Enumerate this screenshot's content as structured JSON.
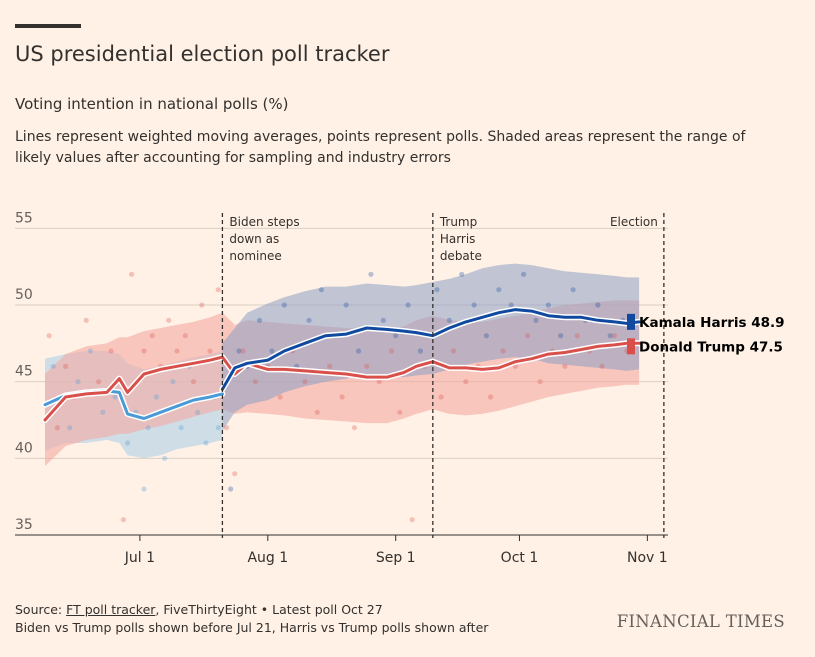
{
  "header": {
    "title": "US presidential election poll tracker",
    "subtitle": "Voting intention in national polls (%)",
    "description": "Lines represent weighted moving averages, points represent polls. Shaded areas represent the range of likely values after accounting for sampling and industry errors"
  },
  "footer": {
    "source_prefix": "Source: ",
    "source_link": "FT poll tracker",
    "source_rest": ", FiveThirtyEight • Latest poll Oct 27",
    "note": "Biden vs Trump polls shown before Jul 21, Harris vs Trump polls shown after",
    "brand": "FINANCIAL TIMES"
  },
  "colors": {
    "harris": "#0f4aa0",
    "trump": "#d94f4a",
    "biden": "#4a9ad8",
    "background": "#fff1e5"
  },
  "chart_data": {
    "type": "line",
    "title": "US presidential election poll tracker",
    "ylabel": "Voting intention in national polls (%)",
    "ylim": [
      35,
      56
    ],
    "yticks": [
      35,
      40,
      45,
      50,
      55
    ],
    "xlim": [
      "2024-06-08",
      "2024-11-06"
    ],
    "xticks": [
      {
        "date": "2024-07-01",
        "label": "Jul 1"
      },
      {
        "date": "2024-08-01",
        "label": "Aug 1"
      },
      {
        "date": "2024-09-01",
        "label": "Sep 1"
      },
      {
        "date": "2024-10-01",
        "label": "Oct 1"
      },
      {
        "date": "2024-11-01",
        "label": "Nov 1"
      }
    ],
    "grid": true,
    "annotations": [
      {
        "date": "2024-07-21",
        "lines": [
          "Biden steps",
          "down as",
          "nominee"
        ]
      },
      {
        "date": "2024-09-10",
        "lines": [
          "Trump",
          "Harris",
          "debate"
        ]
      },
      {
        "date": "2024-11-05",
        "lines": [
          "Election"
        ]
      }
    ],
    "series": [
      {
        "name": "Biden",
        "role": "biden",
        "x": [
          "2024-06-08",
          "2024-06-13",
          "2024-06-18",
          "2024-06-23",
          "2024-06-26",
          "2024-06-28",
          "2024-07-02",
          "2024-07-06",
          "2024-07-10",
          "2024-07-14",
          "2024-07-18",
          "2024-07-21"
        ],
        "y": [
          43.5,
          44.1,
          44.3,
          44.4,
          44.3,
          42.9,
          42.6,
          43.0,
          43.4,
          43.8,
          44.0,
          44.2
        ],
        "band_lo": [
          40.5,
          41.0,
          41.0,
          41.2,
          41.0,
          40.2,
          40.0,
          40.2,
          40.6,
          40.8,
          41.0,
          41.2
        ],
        "band_hi": [
          46.5,
          46.8,
          47.0,
          47.0,
          46.8,
          46.2,
          45.8,
          46.0,
          46.3,
          46.6,
          46.8,
          47.0
        ]
      },
      {
        "name": "Kamala Harris",
        "role": "harris",
        "legend_label": "Kamala Harris 48.9",
        "final_value": 48.9,
        "x": [
          "2024-07-21",
          "2024-07-24",
          "2024-07-27",
          "2024-08-01",
          "2024-08-05",
          "2024-08-10",
          "2024-08-15",
          "2024-08-20",
          "2024-08-25",
          "2024-08-30",
          "2024-09-03",
          "2024-09-06",
          "2024-09-10",
          "2024-09-14",
          "2024-09-18",
          "2024-09-22",
          "2024-09-26",
          "2024-09-30",
          "2024-10-04",
          "2024-10-08",
          "2024-10-12",
          "2024-10-16",
          "2024-10-20",
          "2024-10-24",
          "2024-10-27",
          "2024-10-30"
        ],
        "y": [
          44.5,
          45.9,
          46.2,
          46.4,
          47.0,
          47.5,
          48.0,
          48.1,
          48.5,
          48.4,
          48.3,
          48.2,
          48.0,
          48.5,
          48.9,
          49.2,
          49.5,
          49.7,
          49.6,
          49.3,
          49.2,
          49.2,
          49.0,
          48.9,
          48.8,
          48.9
        ],
        "band_lo": [
          41.8,
          43.0,
          43.5,
          43.8,
          44.3,
          44.7,
          45.0,
          45.2,
          45.5,
          45.4,
          45.3,
          45.4,
          45.5,
          45.8,
          46.1,
          46.3,
          46.5,
          46.6,
          46.5,
          46.2,
          46.1,
          46.0,
          45.9,
          45.8,
          45.7,
          45.8
        ],
        "band_hi": [
          47.5,
          48.5,
          49.5,
          50.1,
          50.5,
          50.9,
          51.2,
          51.2,
          51.4,
          51.3,
          51.2,
          51.3,
          51.5,
          51.7,
          52.0,
          52.4,
          52.6,
          52.7,
          52.6,
          52.4,
          52.2,
          52.1,
          52.0,
          51.9,
          51.8,
          51.8
        ]
      },
      {
        "name": "Donald Trump",
        "role": "trump",
        "legend_label": "Donald Trump 47.5",
        "final_value": 47.5,
        "x": [
          "2024-06-08",
          "2024-06-13",
          "2024-06-18",
          "2024-06-23",
          "2024-06-26",
          "2024-06-28",
          "2024-07-02",
          "2024-07-06",
          "2024-07-10",
          "2024-07-14",
          "2024-07-18",
          "2024-07-21",
          "2024-07-24",
          "2024-07-27",
          "2024-08-01",
          "2024-08-05",
          "2024-08-10",
          "2024-08-15",
          "2024-08-20",
          "2024-08-25",
          "2024-08-30",
          "2024-09-03",
          "2024-09-06",
          "2024-09-10",
          "2024-09-14",
          "2024-09-18",
          "2024-09-22",
          "2024-09-26",
          "2024-09-30",
          "2024-10-04",
          "2024-10-08",
          "2024-10-12",
          "2024-10-16",
          "2024-10-20",
          "2024-10-24",
          "2024-10-27",
          "2024-10-30"
        ],
        "y": [
          42.5,
          44.0,
          44.2,
          44.3,
          45.2,
          44.3,
          45.5,
          45.8,
          46.0,
          46.2,
          46.4,
          46.6,
          45.5,
          46.2,
          45.8,
          45.8,
          45.7,
          45.6,
          45.5,
          45.3,
          45.3,
          45.6,
          46.0,
          46.3,
          45.9,
          45.9,
          45.8,
          45.9,
          46.3,
          46.5,
          46.8,
          46.9,
          47.1,
          47.3,
          47.4,
          47.5,
          47.5
        ],
        "band_lo": [
          39.5,
          40.8,
          41.2,
          41.4,
          41.6,
          41.6,
          41.9,
          42.1,
          42.4,
          42.7,
          43.0,
          43.2,
          42.9,
          43.0,
          42.9,
          42.8,
          42.6,
          42.5,
          42.4,
          42.3,
          42.3,
          42.6,
          42.9,
          43.2,
          42.9,
          42.8,
          42.9,
          43.1,
          43.4,
          43.7,
          44.0,
          44.2,
          44.4,
          44.6,
          44.7,
          44.8,
          44.8
        ],
        "band_hi": [
          45.5,
          46.8,
          47.3,
          47.5,
          47.9,
          47.9,
          48.3,
          48.5,
          48.7,
          48.9,
          49.2,
          49.5,
          48.7,
          49.0,
          48.9,
          48.8,
          48.7,
          48.6,
          48.5,
          48.4,
          48.4,
          48.6,
          49.0,
          49.3,
          49.0,
          48.9,
          48.9,
          49.1,
          49.3,
          49.5,
          49.8,
          50.0,
          50.1,
          50.2,
          50.3,
          50.3,
          50.3
        ]
      }
    ],
    "polls": [
      {
        "date": "2024-06-08",
        "v": 43.5,
        "cand": "biden"
      },
      {
        "date": "2024-06-10",
        "v": 46.0,
        "cand": "biden"
      },
      {
        "date": "2024-06-12",
        "v": 44.0,
        "cand": "biden"
      },
      {
        "date": "2024-06-14",
        "v": 42.0,
        "cand": "biden"
      },
      {
        "date": "2024-06-16",
        "v": 45.0,
        "cand": "biden"
      },
      {
        "date": "2024-06-19",
        "v": 47.0,
        "cand": "biden"
      },
      {
        "date": "2024-06-22",
        "v": 43.0,
        "cand": "biden"
      },
      {
        "date": "2024-06-25",
        "v": 44.0,
        "cand": "biden"
      },
      {
        "date": "2024-06-28",
        "v": 41.0,
        "cand": "biden"
      },
      {
        "date": "2024-06-30",
        "v": 43.0,
        "cand": "biden"
      },
      {
        "date": "2024-07-02",
        "v": 38.0,
        "cand": "biden"
      },
      {
        "date": "2024-07-03",
        "v": 42.0,
        "cand": "biden"
      },
      {
        "date": "2024-07-05",
        "v": 44.0,
        "cand": "biden"
      },
      {
        "date": "2024-07-07",
        "v": 40.0,
        "cand": "biden"
      },
      {
        "date": "2024-07-09",
        "v": 45.0,
        "cand": "biden"
      },
      {
        "date": "2024-07-11",
        "v": 42.0,
        "cand": "biden"
      },
      {
        "date": "2024-07-13",
        "v": 46.0,
        "cand": "biden"
      },
      {
        "date": "2024-07-15",
        "v": 43.0,
        "cand": "biden"
      },
      {
        "date": "2024-07-17",
        "v": 41.0,
        "cand": "biden"
      },
      {
        "date": "2024-07-19",
        "v": 44.0,
        "cand": "biden"
      },
      {
        "date": "2024-07-20",
        "v": 42.0,
        "cand": "biden"
      },
      {
        "date": "2024-06-09",
        "v": 48.0,
        "cand": "trump"
      },
      {
        "date": "2024-06-11",
        "v": 42.0,
        "cand": "trump"
      },
      {
        "date": "2024-06-13",
        "v": 46.0,
        "cand": "trump"
      },
      {
        "date": "2024-06-15",
        "v": 44.0,
        "cand": "trump"
      },
      {
        "date": "2024-06-18",
        "v": 49.0,
        "cand": "trump"
      },
      {
        "date": "2024-06-21",
        "v": 45.0,
        "cand": "trump"
      },
      {
        "date": "2024-06-24",
        "v": 47.0,
        "cand": "trump"
      },
      {
        "date": "2024-06-27",
        "v": 36.0,
        "cand": "trump"
      },
      {
        "date": "2024-06-29",
        "v": 52.0,
        "cand": "trump"
      },
      {
        "date": "2024-07-02",
        "v": 47.0,
        "cand": "trump"
      },
      {
        "date": "2024-07-04",
        "v": 48.0,
        "cand": "trump"
      },
      {
        "date": "2024-07-06",
        "v": 46.0,
        "cand": "trump"
      },
      {
        "date": "2024-07-08",
        "v": 49.0,
        "cand": "trump"
      },
      {
        "date": "2024-07-10",
        "v": 47.0,
        "cand": "trump"
      },
      {
        "date": "2024-07-12",
        "v": 48.0,
        "cand": "trump"
      },
      {
        "date": "2024-07-14",
        "v": 45.0,
        "cand": "trump"
      },
      {
        "date": "2024-07-16",
        "v": 50.0,
        "cand": "trump"
      },
      {
        "date": "2024-07-18",
        "v": 47.0,
        "cand": "trump"
      },
      {
        "date": "2024-07-20",
        "v": 51.0,
        "cand": "trump"
      },
      {
        "date": "2024-07-22",
        "v": 45.0,
        "cand": "harris"
      },
      {
        "date": "2024-07-23",
        "v": 38.0,
        "cand": "harris"
      },
      {
        "date": "2024-07-25",
        "v": 47.0,
        "cand": "harris"
      },
      {
        "date": "2024-07-27",
        "v": 46.0,
        "cand": "harris"
      },
      {
        "date": "2024-07-30",
        "v": 49.0,
        "cand": "harris"
      },
      {
        "date": "2024-08-02",
        "v": 47.0,
        "cand": "harris"
      },
      {
        "date": "2024-08-05",
        "v": 50.0,
        "cand": "harris"
      },
      {
        "date": "2024-08-08",
        "v": 46.0,
        "cand": "harris"
      },
      {
        "date": "2024-08-11",
        "v": 49.0,
        "cand": "harris"
      },
      {
        "date": "2024-08-14",
        "v": 51.0,
        "cand": "harris"
      },
      {
        "date": "2024-08-17",
        "v": 48.0,
        "cand": "harris"
      },
      {
        "date": "2024-08-20",
        "v": 50.0,
        "cand": "harris"
      },
      {
        "date": "2024-08-23",
        "v": 47.0,
        "cand": "harris"
      },
      {
        "date": "2024-08-26",
        "v": 52.0,
        "cand": "harris"
      },
      {
        "date": "2024-08-29",
        "v": 49.0,
        "cand": "harris"
      },
      {
        "date": "2024-09-01",
        "v": 48.0,
        "cand": "harris"
      },
      {
        "date": "2024-09-04",
        "v": 50.0,
        "cand": "harris"
      },
      {
        "date": "2024-09-07",
        "v": 47.0,
        "cand": "harris"
      },
      {
        "date": "2024-09-11",
        "v": 51.0,
        "cand": "harris"
      },
      {
        "date": "2024-09-14",
        "v": 49.0,
        "cand": "harris"
      },
      {
        "date": "2024-09-17",
        "v": 52.0,
        "cand": "harris"
      },
      {
        "date": "2024-09-20",
        "v": 50.0,
        "cand": "harris"
      },
      {
        "date": "2024-09-23",
        "v": 48.0,
        "cand": "harris"
      },
      {
        "date": "2024-09-26",
        "v": 51.0,
        "cand": "harris"
      },
      {
        "date": "2024-09-29",
        "v": 50.0,
        "cand": "harris"
      },
      {
        "date": "2024-10-02",
        "v": 52.0,
        "cand": "harris"
      },
      {
        "date": "2024-10-05",
        "v": 49.0,
        "cand": "harris"
      },
      {
        "date": "2024-10-08",
        "v": 50.0,
        "cand": "harris"
      },
      {
        "date": "2024-10-11",
        "v": 48.0,
        "cand": "harris"
      },
      {
        "date": "2024-10-14",
        "v": 51.0,
        "cand": "harris"
      },
      {
        "date": "2024-10-17",
        "v": 49.0,
        "cand": "harris"
      },
      {
        "date": "2024-10-20",
        "v": 50.0,
        "cand": "harris"
      },
      {
        "date": "2024-10-23",
        "v": 48.0,
        "cand": "harris"
      },
      {
        "date": "2024-10-26",
        "v": 49.0,
        "cand": "harris"
      },
      {
        "date": "2024-07-22",
        "v": 42.0,
        "cand": "trump"
      },
      {
        "date": "2024-07-24",
        "v": 39.0,
        "cand": "trump"
      },
      {
        "date": "2024-07-26",
        "v": 47.0,
        "cand": "trump"
      },
      {
        "date": "2024-07-29",
        "v": 45.0,
        "cand": "trump"
      },
      {
        "date": "2024-08-01",
        "v": 46.0,
        "cand": "trump"
      },
      {
        "date": "2024-08-04",
        "v": 44.0,
        "cand": "trump"
      },
      {
        "date": "2024-08-07",
        "v": 47.0,
        "cand": "trump"
      },
      {
        "date": "2024-08-10",
        "v": 45.0,
        "cand": "trump"
      },
      {
        "date": "2024-08-13",
        "v": 43.0,
        "cand": "trump"
      },
      {
        "date": "2024-08-16",
        "v": 46.0,
        "cand": "trump"
      },
      {
        "date": "2024-08-19",
        "v": 44.0,
        "cand": "trump"
      },
      {
        "date": "2024-08-22",
        "v": 42.0,
        "cand": "trump"
      },
      {
        "date": "2024-08-25",
        "v": 46.0,
        "cand": "trump"
      },
      {
        "date": "2024-08-28",
        "v": 45.0,
        "cand": "trump"
      },
      {
        "date": "2024-08-31",
        "v": 47.0,
        "cand": "trump"
      },
      {
        "date": "2024-09-02",
        "v": 43.0,
        "cand": "trump"
      },
      {
        "date": "2024-09-05",
        "v": 36.0,
        "cand": "trump"
      },
      {
        "date": "2024-09-08",
        "v": 46.0,
        "cand": "trump"
      },
      {
        "date": "2024-09-12",
        "v": 44.0,
        "cand": "trump"
      },
      {
        "date": "2024-09-15",
        "v": 47.0,
        "cand": "trump"
      },
      {
        "date": "2024-09-18",
        "v": 45.0,
        "cand": "trump"
      },
      {
        "date": "2024-09-21",
        "v": 46.0,
        "cand": "trump"
      },
      {
        "date": "2024-09-24",
        "v": 44.0,
        "cand": "trump"
      },
      {
        "date": "2024-09-27",
        "v": 47.0,
        "cand": "trump"
      },
      {
        "date": "2024-09-30",
        "v": 46.0,
        "cand": "trump"
      },
      {
        "date": "2024-10-03",
        "v": 48.0,
        "cand": "trump"
      },
      {
        "date": "2024-10-06",
        "v": 45.0,
        "cand": "trump"
      },
      {
        "date": "2024-10-09",
        "v": 47.0,
        "cand": "trump"
      },
      {
        "date": "2024-10-12",
        "v": 46.0,
        "cand": "trump"
      },
      {
        "date": "2024-10-15",
        "v": 48.0,
        "cand": "trump"
      },
      {
        "date": "2024-10-18",
        "v": 47.0,
        "cand": "trump"
      },
      {
        "date": "2024-10-21",
        "v": 46.0,
        "cand": "trump"
      },
      {
        "date": "2024-10-24",
        "v": 48.0,
        "cand": "trump"
      },
      {
        "date": "2024-10-27",
        "v": 47.0,
        "cand": "trump"
      }
    ]
  }
}
